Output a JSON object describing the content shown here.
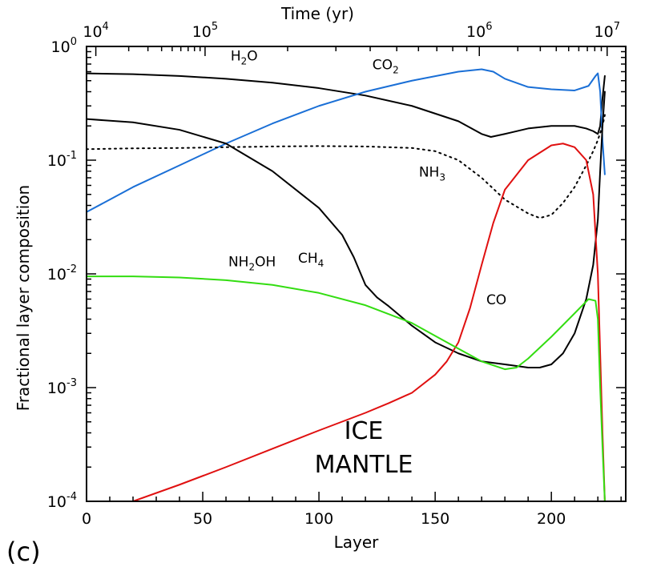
{
  "chart_data": {
    "type": "line",
    "panel_label": "(c)",
    "xlabel": "Layer",
    "ylabel": "Fractional layer composition",
    "top_axis_label": "Time (yr)",
    "xlim": [
      0,
      232
    ],
    "ylim": [
      0.0001,
      1
    ],
    "y_scale": "log",
    "x_ticks": [
      0,
      50,
      100,
      150,
      200
    ],
    "x_tick_labels": [
      "0",
      "50",
      "100",
      "150",
      "200"
    ],
    "y_ticks": [
      0.0001,
      0.001,
      0.01,
      0.1,
      1
    ],
    "y_tick_labels": [
      {
        "base": "10",
        "exp": "-4"
      },
      {
        "base": "10",
        "exp": "-3"
      },
      {
        "base": "10",
        "exp": "-2"
      },
      {
        "base": "10",
        "exp": "-1"
      },
      {
        "base": "10",
        "exp": "0"
      }
    ],
    "top_ticks": [
      {
        "layer": 4,
        "base": "10",
        "exp": "4"
      },
      {
        "layer": 51,
        "base": "10",
        "exp": "5"
      },
      {
        "layer": 169,
        "base": "10",
        "exp": "6"
      },
      {
        "layer": 224,
        "base": "10",
        "exp": "7"
      }
    ],
    "annotation": [
      "ICE",
      "MANTLE"
    ],
    "series": [
      {
        "name": "H2O",
        "label_main": "H",
        "label_sub": "2",
        "label_tail": "O",
        "label_at": [
          62,
          0.75
        ],
        "color": "#000000",
        "dash": "solid",
        "x": [
          0,
          20,
          40,
          60,
          80,
          100,
          120,
          140,
          160,
          170,
          174,
          180,
          190,
          200,
          210,
          215,
          218,
          220,
          221,
          222,
          223
        ],
        "y": [
          0.58,
          0.57,
          0.55,
          0.52,
          0.48,
          0.43,
          0.37,
          0.3,
          0.22,
          0.17,
          0.16,
          0.17,
          0.19,
          0.2,
          0.2,
          0.19,
          0.18,
          0.17,
          0.2,
          0.35,
          0.55
        ]
      },
      {
        "name": "CO2",
        "label_main": "CO",
        "label_sub": "2",
        "label_tail": "",
        "label_at": [
          123,
          0.63
        ],
        "color": "#1a6fd6",
        "dash": "solid",
        "x": [
          0,
          10,
          20,
          40,
          60,
          80,
          100,
          120,
          140,
          160,
          170,
          175,
          180,
          190,
          200,
          210,
          216,
          219,
          220,
          221,
          222,
          223
        ],
        "y": [
          0.035,
          0.045,
          0.058,
          0.09,
          0.14,
          0.21,
          0.3,
          0.4,
          0.5,
          0.6,
          0.63,
          0.6,
          0.52,
          0.44,
          0.42,
          0.41,
          0.45,
          0.55,
          0.58,
          0.4,
          0.15,
          0.075
        ]
      },
      {
        "name": "NH3",
        "label_main": "NH",
        "label_sub": "3",
        "label_tail": "",
        "label_at": [
          143,
          0.072
        ],
        "color": "#000000",
        "dash": "dotted",
        "x": [
          0,
          20,
          40,
          60,
          80,
          100,
          120,
          140,
          150,
          160,
          170,
          180,
          190,
          195,
          200,
          205,
          210,
          215,
          218,
          220,
          222,
          223
        ],
        "y": [
          0.125,
          0.127,
          0.128,
          0.13,
          0.132,
          0.133,
          0.132,
          0.128,
          0.12,
          0.1,
          0.07,
          0.045,
          0.034,
          0.031,
          0.033,
          0.042,
          0.058,
          0.09,
          0.12,
          0.15,
          0.2,
          0.25
        ]
      },
      {
        "name": "CH4",
        "label_main": "CH",
        "label_sub": "4",
        "label_tail": "",
        "label_at": [
          91,
          0.0125
        ],
        "color": "#000000",
        "dash": "solid",
        "x": [
          0,
          20,
          40,
          60,
          80,
          100,
          110,
          115,
          120,
          125,
          130,
          140,
          150,
          160,
          170,
          180,
          190,
          195,
          200,
          205,
          210,
          215,
          218,
          220,
          221,
          222,
          223
        ],
        "y": [
          0.23,
          0.215,
          0.185,
          0.14,
          0.08,
          0.038,
          0.022,
          0.014,
          0.008,
          0.0062,
          0.0052,
          0.0035,
          0.0025,
          0.002,
          0.0017,
          0.0016,
          0.0015,
          0.0015,
          0.0016,
          0.002,
          0.003,
          0.006,
          0.012,
          0.03,
          0.08,
          0.2,
          0.4
        ]
      },
      {
        "name": "CO",
        "label_main": "CO",
        "label_sub": "",
        "label_tail": "",
        "label_at": [
          172,
          0.0054
        ],
        "color": "#e01010",
        "dash": "solid",
        "x": [
          20,
          40,
          60,
          80,
          100,
          120,
          130,
          140,
          150,
          155,
          160,
          165,
          170,
          175,
          180,
          190,
          200,
          205,
          210,
          215,
          218,
          220,
          221,
          222,
          223
        ],
        "y": [
          0.0001,
          0.00014,
          0.0002,
          0.00029,
          0.00042,
          0.0006,
          0.00073,
          0.0009,
          0.0013,
          0.0017,
          0.0025,
          0.005,
          0.012,
          0.028,
          0.055,
          0.1,
          0.135,
          0.14,
          0.13,
          0.1,
          0.05,
          0.01,
          0.002,
          0.0004,
          0.0001
        ]
      },
      {
        "name": "NH2OH",
        "label_main": "NH",
        "label_sub": "2",
        "label_tail": "OH",
        "label_at": [
          61,
          0.0117
        ],
        "color": "#33dd11",
        "dash": "solid",
        "x": [
          0,
          20,
          40,
          60,
          80,
          100,
          120,
          140,
          160,
          170,
          180,
          185,
          190,
          200,
          210,
          216,
          219,
          220,
          221,
          222,
          223
        ],
        "y": [
          0.0095,
          0.0095,
          0.0093,
          0.0088,
          0.008,
          0.0068,
          0.0053,
          0.0037,
          0.0022,
          0.0017,
          0.00145,
          0.0015,
          0.0018,
          0.0028,
          0.0045,
          0.006,
          0.0058,
          0.004,
          0.001,
          0.0003,
          0.0001
        ]
      }
    ]
  }
}
